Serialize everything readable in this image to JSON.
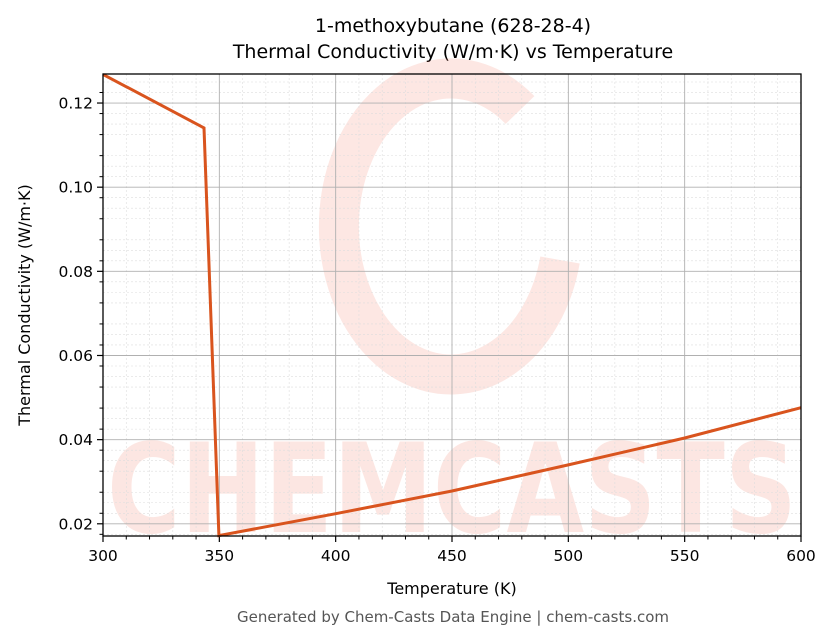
{
  "chart": {
    "title_line1": "1-methoxybutane (628-28-4)",
    "title_line2": "Thermal Conductivity (W/m·K) vs Temperature",
    "footer": "Generated by Chem-Casts Data Engine | chem-casts.com",
    "watermark": "CHEMCASTS"
  },
  "chart_data": {
    "type": "line",
    "title": "1-methoxybutane (628-28-4) Thermal Conductivity (W/m·K) vs Temperature",
    "xlabel": "Temperature (K)",
    "ylabel": "Thermal Conductivity (W/m·K)",
    "xlim": [
      300,
      600
    ],
    "ylim": [
      0.0171,
      0.1269
    ],
    "xticks": [
      300,
      350,
      400,
      450,
      500,
      550,
      600
    ],
    "xtick_labels": [
      "300",
      "350",
      "400",
      "450",
      "500",
      "550",
      "600"
    ],
    "yticks": [
      0.02,
      0.04,
      0.06,
      0.08,
      0.1,
      0.12
    ],
    "ytick_labels": [
      "0.02",
      "0.04",
      "0.06",
      "0.08",
      "0.10",
      "0.12"
    ],
    "grid": true,
    "legend": null,
    "line_color": "#d9541e",
    "series": [
      {
        "name": "Thermal Conductivity",
        "x": [
          300,
          343.4,
          349.8,
          400,
          450,
          500,
          550,
          600
        ],
        "y": [
          0.1268,
          0.1141,
          0.0172,
          0.0224,
          0.0278,
          0.034,
          0.0404,
          0.0476
        ]
      }
    ]
  }
}
